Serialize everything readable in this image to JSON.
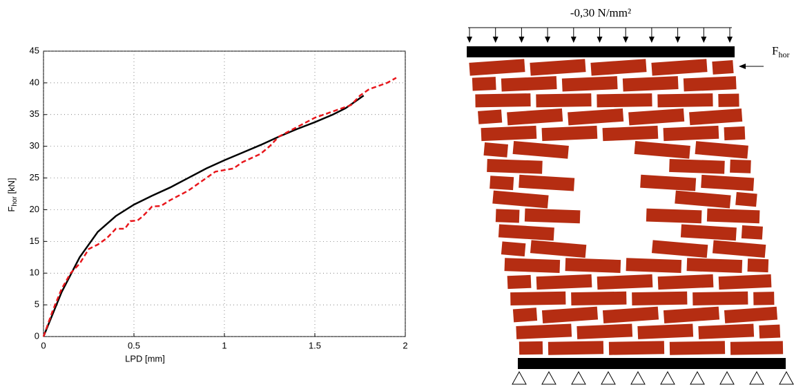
{
  "chart_data": {
    "type": "line",
    "xlabel": "LPD [mm]",
    "ylabel": {
      "main": "F",
      "sub": "hor",
      "unit": " [kN]"
    },
    "xlim": [
      0,
      2
    ],
    "xticks": [
      0,
      0.5,
      1,
      1.5,
      2
    ],
    "ylim": [
      0,
      45
    ],
    "yticks": [
      0,
      5,
      10,
      15,
      20,
      25,
      30,
      35,
      40,
      45
    ],
    "grid": true,
    "series": [
      {
        "color": "#000000",
        "line_style": "solid",
        "x": [
          0,
          0.1,
          0.2,
          0.3,
          0.4,
          0.5,
          0.6,
          0.7,
          0.8,
          0.9,
          1.0,
          1.1,
          1.2,
          1.3,
          1.4,
          1.5,
          1.6,
          1.67,
          1.72,
          1.77
        ],
        "values": [
          0,
          7,
          12.5,
          16.5,
          19,
          20.8,
          22.2,
          23.5,
          25,
          26.5,
          27.8,
          29,
          30.2,
          31.5,
          32.7,
          33.8,
          35,
          36,
          37,
          38
        ]
      },
      {
        "color": "#e8161b",
        "line_style": "dashed",
        "x": [
          0,
          0.05,
          0.1,
          0.15,
          0.2,
          0.25,
          0.3,
          0.35,
          0.4,
          0.45,
          0.48,
          0.52,
          0.55,
          0.6,
          0.65,
          0.7,
          0.8,
          0.9,
          0.95,
          1.05,
          1.1,
          1.2,
          1.25,
          1.3,
          1.4,
          1.5,
          1.6,
          1.7,
          1.75,
          1.8,
          1.9,
          1.95
        ],
        "values": [
          0,
          4,
          7.5,
          10,
          11.5,
          13.8,
          14.5,
          15.5,
          17,
          17,
          18.2,
          18.3,
          19,
          20.5,
          20.6,
          21.5,
          23,
          25,
          26,
          26.5,
          27.5,
          28.8,
          30,
          31.5,
          33,
          34.5,
          35.5,
          36.5,
          38,
          39,
          40,
          40.8
        ]
      }
    ]
  },
  "diagram": {
    "load_label": "-0,30 N/mm²",
    "force_label": {
      "main": "F",
      "sub": "hor"
    }
  }
}
